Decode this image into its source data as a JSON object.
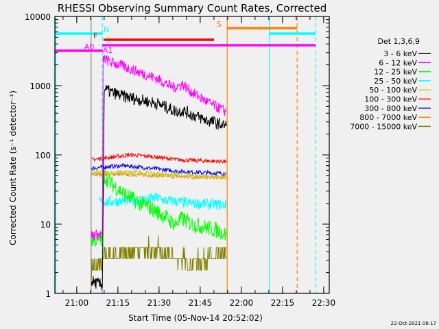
{
  "chart_data": {
    "type": "line",
    "title": "RHESSI Observing Summary Count Rates, Corrected",
    "xlabel": "Start Time (05-Nov-14 20:52:02)",
    "ylabel": "Corrected Count Rate (s⁻¹ detector⁻¹)",
    "yscale": "log",
    "ylim": [
      1,
      10000
    ],
    "xlim_minutes_from_start": [
      0,
      100
    ],
    "x_unit": "minutes after 20:52:02",
    "y_tick_labels": [
      {
        "value": 1,
        "label": "1"
      },
      {
        "value": 10,
        "label": "10"
      },
      {
        "value": 100,
        "label": "100"
      },
      {
        "value": 1000,
        "label": "1000"
      },
      {
        "value": 10000,
        "label": "10000"
      }
    ],
    "x_tick_labels": [
      {
        "minute": 7.97,
        "label": "21:00"
      },
      {
        "minute": 22.97,
        "label": "21:15"
      },
      {
        "minute": 37.97,
        "label": "21:30"
      },
      {
        "minute": 52.97,
        "label": "21:45"
      },
      {
        "minute": 67.97,
        "label": "22:00"
      },
      {
        "minute": 82.97,
        "label": "22:15"
      },
      {
        "minute": 97.97,
        "label": "22:30"
      }
    ],
    "legend": {
      "title": "Det 1,3,6,9",
      "placement": "right"
    },
    "series": [
      {
        "name": "3 - 6 keV",
        "color": "#000000",
        "points": [
          [
            13.3,
            1.5
          ],
          [
            17.3,
            1.3
          ],
          [
            18,
            900
          ],
          [
            20,
            820
          ],
          [
            25,
            700
          ],
          [
            30,
            640
          ],
          [
            37.5,
            550
          ],
          [
            42,
            460
          ],
          [
            45,
            420
          ],
          [
            46.5,
            440
          ],
          [
            50,
            380
          ],
          [
            55,
            320
          ],
          [
            60,
            280
          ],
          [
            62.5,
            260
          ]
        ]
      },
      {
        "name": "6 - 12 keV",
        "color": "#ff00ff",
        "points": [
          [
            13.3,
            7
          ],
          [
            17.3,
            7
          ],
          [
            17.6,
            2500
          ],
          [
            20,
            2200
          ],
          [
            25,
            1900
          ],
          [
            30,
            1600
          ],
          [
            37.5,
            1250
          ],
          [
            43,
            950
          ],
          [
            45.5,
            1000
          ],
          [
            46.5,
            1050
          ],
          [
            50,
            800
          ],
          [
            55,
            600
          ],
          [
            60,
            470
          ],
          [
            62.5,
            420
          ]
        ]
      },
      {
        "name": "12 - 25 keV",
        "color": "#00ff00",
        "points": [
          [
            13.3,
            6
          ],
          [
            17.3,
            6
          ],
          [
            18,
            50
          ],
          [
            20,
            40
          ],
          [
            25,
            28
          ],
          [
            30,
            21
          ],
          [
            35,
            17
          ],
          [
            40,
            13
          ],
          [
            43.8,
            10
          ],
          [
            46.3,
            12
          ],
          [
            50,
            10
          ],
          [
            55,
            9
          ],
          [
            60,
            8
          ],
          [
            62.5,
            7
          ]
        ]
      },
      {
        "name": "25 - 50 keV",
        "color": "#00ffff",
        "points": [
          [
            16,
            21
          ],
          [
            20,
            21
          ],
          [
            30,
            22
          ],
          [
            37.5,
            24
          ],
          [
            40,
            22
          ],
          [
            50,
            20
          ],
          [
            62.5,
            19
          ]
        ]
      },
      {
        "name": "50 - 100 keV",
        "color": "#cccc33",
        "points": [
          [
            13.3,
            55
          ],
          [
            20,
            55
          ],
          [
            30,
            56
          ],
          [
            40,
            52
          ],
          [
            50,
            50
          ],
          [
            62.5,
            48
          ]
        ]
      },
      {
        "name": "100 - 300 keV",
        "color": "#ff0000",
        "points": [
          [
            13.3,
            85
          ],
          [
            20,
            92
          ],
          [
            27.5,
            100
          ],
          [
            35,
            95
          ],
          [
            45,
            85
          ],
          [
            55,
            82
          ],
          [
            62.5,
            80
          ]
        ]
      },
      {
        "name": "300 - 800 keV",
        "color": "#0000ff",
        "points": [
          [
            13.3,
            64
          ],
          [
            20,
            68
          ],
          [
            25,
            70
          ],
          [
            35,
            64
          ],
          [
            45,
            58
          ],
          [
            55,
            55
          ],
          [
            62.5,
            54
          ]
        ]
      },
      {
        "name": "800 - 7000 keV",
        "color": "#ff8000",
        "points": [
          [
            13.3,
            52
          ],
          [
            20,
            53
          ],
          [
            30,
            52
          ],
          [
            40,
            50
          ],
          [
            50,
            48
          ],
          [
            62.5,
            47
          ]
        ]
      },
      {
        "name": "7000 - 15000 keV",
        "color": "#808000",
        "points": [
          [
            13.3,
            2.3
          ],
          [
            17.3,
            2.4
          ],
          [
            18,
            3.5
          ],
          [
            25,
            3.8
          ],
          [
            30,
            4.5
          ],
          [
            37.5,
            4.4
          ],
          [
            40,
            3.5
          ],
          [
            45,
            3.2
          ],
          [
            50,
            2.8
          ],
          [
            55,
            3.2
          ],
          [
            62.5,
            3.4
          ]
        ]
      }
    ],
    "flag_bars": [
      {
        "label": "N",
        "color": "#00ffff",
        "segments": [
          [
            0,
            17.3
          ],
          [
            78.2,
            95
          ]
        ],
        "level": 49,
        "label_minute": 18.8
      },
      {
        "label": "F",
        "color": "#ff0000",
        "segments": [
          [
            17.8,
            58
          ]
        ],
        "level": 58,
        "label_minute": 14.8
      },
      {
        "label": "A0",
        "color": "#ff00ff",
        "segments": [
          [
            0,
            17.5
          ]
        ],
        "level": 74,
        "label_minute": 12.5
      },
      {
        "label": "A1",
        "color": "#ff00ff",
        "segments": [
          [
            17.3,
            95
          ]
        ],
        "level": 66,
        "label_minute": 19.3
      },
      {
        "label": "S",
        "color": "#ff8000",
        "segments": [
          [
            62.8,
            88.3
          ]
        ],
        "level": 41,
        "label_minute": 59.8
      }
    ],
    "vertical_markers": [
      {
        "minute": 0.3,
        "color": "#00ffff",
        "style": "solid"
      },
      {
        "minute": 13.2,
        "color": "#888888",
        "style": "solid"
      },
      {
        "minute": 17.3,
        "color": "#00ffff",
        "style": "dashed"
      },
      {
        "minute": 62.8,
        "color": "#ff8000",
        "style": "solid"
      },
      {
        "minute": 78.2,
        "color": "#00ffff",
        "style": "solid"
      },
      {
        "minute": 88.3,
        "color": "#ff8000",
        "style": "dashed"
      },
      {
        "minute": 95,
        "color": "#00ffff",
        "style": "dashed"
      }
    ]
  },
  "footer": {
    "date_stamp": "22-Oct-2021 08:17"
  }
}
